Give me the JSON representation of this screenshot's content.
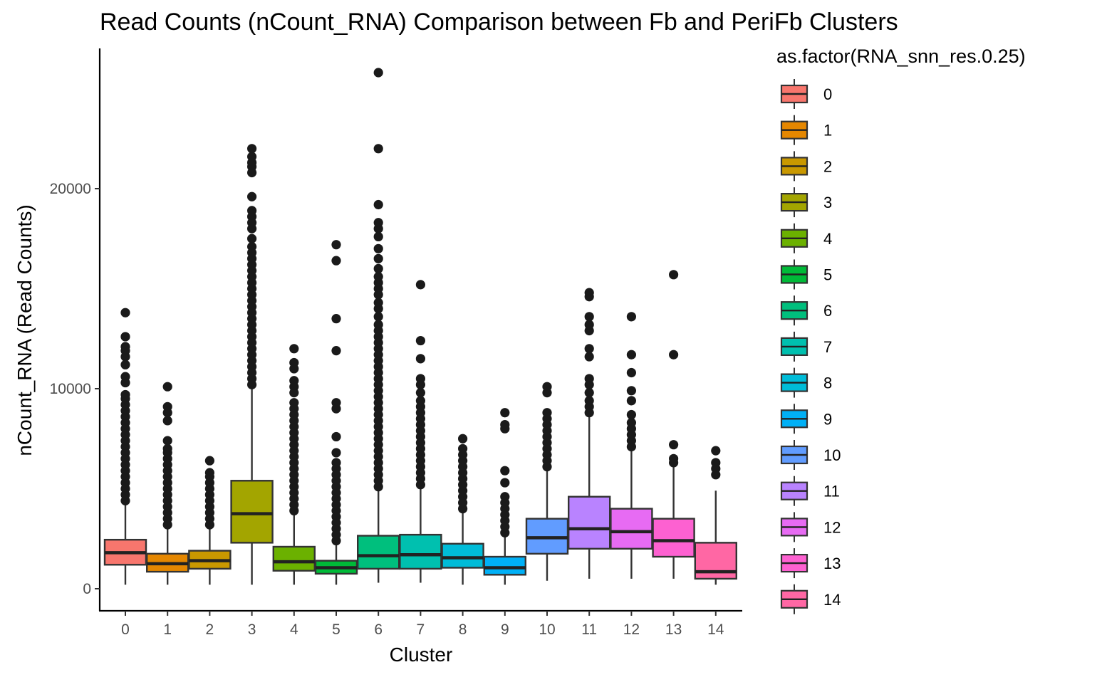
{
  "chart_data": {
    "type": "boxplot",
    "title": "Read Counts (nCount_RNA) Comparison between Fb and PeriFb Clusters",
    "xlabel": "Cluster",
    "ylabel": "nCount_RNA (Read Counts)",
    "ylim": [
      -1100,
      26500
    ],
    "y_ticks": [
      0,
      10000,
      20000
    ],
    "y_tick_labels": [
      "0",
      "10000",
      "20000"
    ],
    "legend": {
      "title": "as.factor(RNA_snn_res.0.25)",
      "position": "right"
    },
    "grid": false,
    "categories": [
      "0",
      "1",
      "2",
      "3",
      "4",
      "5",
      "6",
      "7",
      "8",
      "9",
      "10",
      "11",
      "12",
      "13",
      "14"
    ],
    "colors": [
      "#F8766D",
      "#E58700",
      "#C99800",
      "#A3A500",
      "#6BB100",
      "#00BA38",
      "#00BF7D",
      "#00C0AF",
      "#00BCD8",
      "#00B0F6",
      "#619CFF",
      "#B983FF",
      "#E76BF3",
      "#FD61D1",
      "#FF67A4"
    ],
    "boxes": [
      {
        "cluster": "0",
        "min": 200,
        "q1": 1200,
        "median": 1800,
        "q3": 2450,
        "max": 4200,
        "outliers": [
          4400,
          4700,
          5000,
          5300,
          5600,
          5900,
          6200,
          6500,
          6800,
          7100,
          7400,
          7700,
          8000,
          8300,
          8600,
          8900,
          9200,
          9500,
          9700,
          10300,
          10600,
          11200,
          11600,
          11900,
          12100,
          12600,
          13800
        ]
      },
      {
        "cluster": "1",
        "min": 200,
        "q1": 850,
        "median": 1250,
        "q3": 1750,
        "max": 3100,
        "outliers": [
          3200,
          3500,
          3800,
          4100,
          4400,
          4700,
          5000,
          5300,
          5600,
          5900,
          6200,
          6500,
          6800,
          7000,
          7400,
          8400,
          8800,
          9100,
          10100
        ]
      },
      {
        "cluster": "2",
        "min": 200,
        "q1": 1000,
        "median": 1400,
        "q3": 1900,
        "max": 3100,
        "outliers": [
          3200,
          3500,
          3800,
          4100,
          4400,
          4700,
          5000,
          5300,
          5600,
          5800,
          6400
        ]
      },
      {
        "cluster": "3",
        "min": 200,
        "q1": 2300,
        "median": 3750,
        "q3": 5400,
        "max": 10100,
        "outliers": [
          10200,
          10500,
          10800,
          11100,
          11400,
          11700,
          12000,
          12300,
          12600,
          12900,
          13200,
          13500,
          13800,
          14100,
          14400,
          14700,
          15000,
          15300,
          15600,
          15900,
          16200,
          16500,
          16800,
          17100,
          17500,
          18000,
          18300,
          18600,
          18900,
          19600,
          20800,
          21100,
          21300,
          21600,
          22000
        ]
      },
      {
        "cluster": "4",
        "min": 200,
        "q1": 900,
        "median": 1350,
        "q3": 2100,
        "max": 3800,
        "outliers": [
          3900,
          4200,
          4500,
          4800,
          5100,
          5400,
          5700,
          6000,
          6300,
          6600,
          6900,
          7200,
          7500,
          7800,
          8100,
          8400,
          8700,
          9000,
          9300,
          9800,
          10100,
          10400,
          11000,
          11300,
          12000
        ]
      },
      {
        "cluster": "5",
        "min": 200,
        "q1": 750,
        "median": 1050,
        "q3": 1400,
        "max": 2300,
        "outliers": [
          2400,
          2700,
          3000,
          3300,
          3600,
          3900,
          4200,
          4500,
          4800,
          5100,
          5400,
          5700,
          6000,
          6300,
          6800,
          7600,
          9000,
          9300,
          11900,
          13500,
          16400,
          17200
        ]
      },
      {
        "cluster": "6",
        "min": 300,
        "q1": 1000,
        "median": 1650,
        "q3": 2650,
        "max": 5000,
        "outliers": [
          5100,
          5400,
          5700,
          6000,
          6300,
          6600,
          6900,
          7200,
          7500,
          7800,
          8100,
          8400,
          8700,
          9000,
          9300,
          9600,
          9900,
          10200,
          10500,
          10800,
          11100,
          11400,
          11700,
          12000,
          12300,
          12600,
          12900,
          13200,
          13600,
          14000,
          14300,
          14700,
          15000,
          15300,
          15600,
          16000,
          16500,
          17000,
          17600,
          18000,
          18300,
          19200,
          22000,
          25800
        ]
      },
      {
        "cluster": "7",
        "min": 300,
        "q1": 1000,
        "median": 1700,
        "q3": 2700,
        "max": 5100,
        "outliers": [
          5200,
          5500,
          5800,
          6100,
          6400,
          6700,
          7000,
          7300,
          7600,
          7900,
          8200,
          8500,
          8800,
          9100,
          9400,
          9800,
          10200,
          10500,
          11500,
          12400,
          15200
        ]
      },
      {
        "cluster": "8",
        "min": 200,
        "q1": 1050,
        "median": 1550,
        "q3": 2250,
        "max": 3900,
        "outliers": [
          4000,
          4300,
          4600,
          4900,
          5200,
          5500,
          5800,
          6100,
          6400,
          6700,
          7000,
          7500
        ]
      },
      {
        "cluster": "9",
        "min": 200,
        "q1": 700,
        "median": 1050,
        "q3": 1600,
        "max": 2700,
        "outliers": [
          2800,
          3100,
          3400,
          3700,
          4000,
          4300,
          4600,
          5300,
          5900,
          8000,
          8200,
          8800
        ]
      },
      {
        "cluster": "10",
        "min": 400,
        "q1": 1750,
        "median": 2550,
        "q3": 3500,
        "max": 6000,
        "outliers": [
          6100,
          6400,
          6700,
          7000,
          7300,
          7600,
          7900,
          8200,
          8500,
          8800,
          9800,
          10100
        ]
      },
      {
        "cluster": "11",
        "min": 500,
        "q1": 2000,
        "median": 3000,
        "q3": 4600,
        "max": 8600,
        "outliers": [
          8800,
          9100,
          9400,
          9800,
          10200,
          10500,
          11600,
          12000,
          12900,
          13200,
          13600,
          14600,
          14800
        ]
      },
      {
        "cluster": "12",
        "min": 500,
        "q1": 2000,
        "median": 2850,
        "q3": 4000,
        "max": 7000,
        "outliers": [
          7100,
          7400,
          7700,
          8000,
          8300,
          8700,
          9400,
          9900,
          10800,
          11700,
          13600
        ]
      },
      {
        "cluster": "13",
        "min": 500,
        "q1": 1600,
        "median": 2400,
        "q3": 3500,
        "max": 6100,
        "outliers": [
          6300,
          6500,
          7200,
          11700,
          15700
        ]
      },
      {
        "cluster": "14",
        "min": 200,
        "q1": 500,
        "median": 850,
        "q3": 2300,
        "max": 4900,
        "outliers": [
          5700,
          6000,
          6300,
          6900
        ]
      }
    ]
  }
}
